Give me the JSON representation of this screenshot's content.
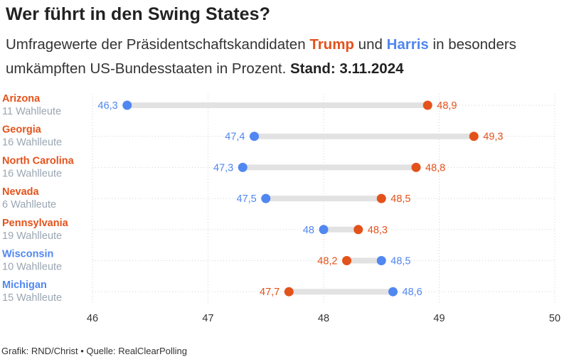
{
  "title": "Wer führt in den Swing States?",
  "subtitle": {
    "part1": "Umfragewerte der Präsidentschaftskandidaten ",
    "trump": "Trump",
    "und": " und ",
    "harris": "Harris",
    "part2": " in besonders umkämpften US-Bundesstaaten in Prozent. ",
    "stand": "Stand: 3.11.2024"
  },
  "footer": "Grafik: RND/Christ • Quelle: RealClearPolling",
  "colors": {
    "trump": "#e4521b",
    "harris": "#5187f0",
    "bar": "#e2e2e2",
    "grid": "#cfd3d8"
  },
  "chart_data": {
    "type": "dot-range",
    "x_range": [
      46,
      50
    ],
    "x_ticks": [
      "46",
      "47",
      "48",
      "49",
      "50"
    ],
    "series": [
      {
        "name": "Trump",
        "color": "#e4521b"
      },
      {
        "name": "Harris",
        "color": "#5187f0"
      }
    ],
    "rows": [
      {
        "state": "Arizona",
        "electors": "11 Wahlleute",
        "leader": "trump",
        "trump": 48.9,
        "trump_label": "48,9",
        "harris": 46.3,
        "harris_label": "46,3"
      },
      {
        "state": "Georgia",
        "electors": "16 Wahlleute",
        "leader": "trump",
        "trump": 49.3,
        "trump_label": "49,3",
        "harris": 47.4,
        "harris_label": "47,4"
      },
      {
        "state": "North Carolina",
        "electors": "16 Wahlleute",
        "leader": "trump",
        "trump": 48.8,
        "trump_label": "48,8",
        "harris": 47.3,
        "harris_label": "47,3"
      },
      {
        "state": "Nevada",
        "electors": "6 Wahlleute",
        "leader": "trump",
        "trump": 48.5,
        "trump_label": "48,5",
        "harris": 47.5,
        "harris_label": "47,5"
      },
      {
        "state": "Pennsylvania",
        "electors": "19 Wahlleute",
        "leader": "trump",
        "trump": 48.3,
        "trump_label": "48,3",
        "harris": 48.0,
        "harris_label": "48"
      },
      {
        "state": "Wisconsin",
        "electors": "10 Wahlleute",
        "leader": "harris",
        "trump": 48.2,
        "trump_label": "48,2",
        "harris": 48.5,
        "harris_label": "48,5"
      },
      {
        "state": "Michigan",
        "electors": "15 Wahlleute",
        "leader": "harris",
        "trump": 47.7,
        "trump_label": "47,7",
        "harris": 48.6,
        "harris_label": "48,6"
      }
    ]
  }
}
